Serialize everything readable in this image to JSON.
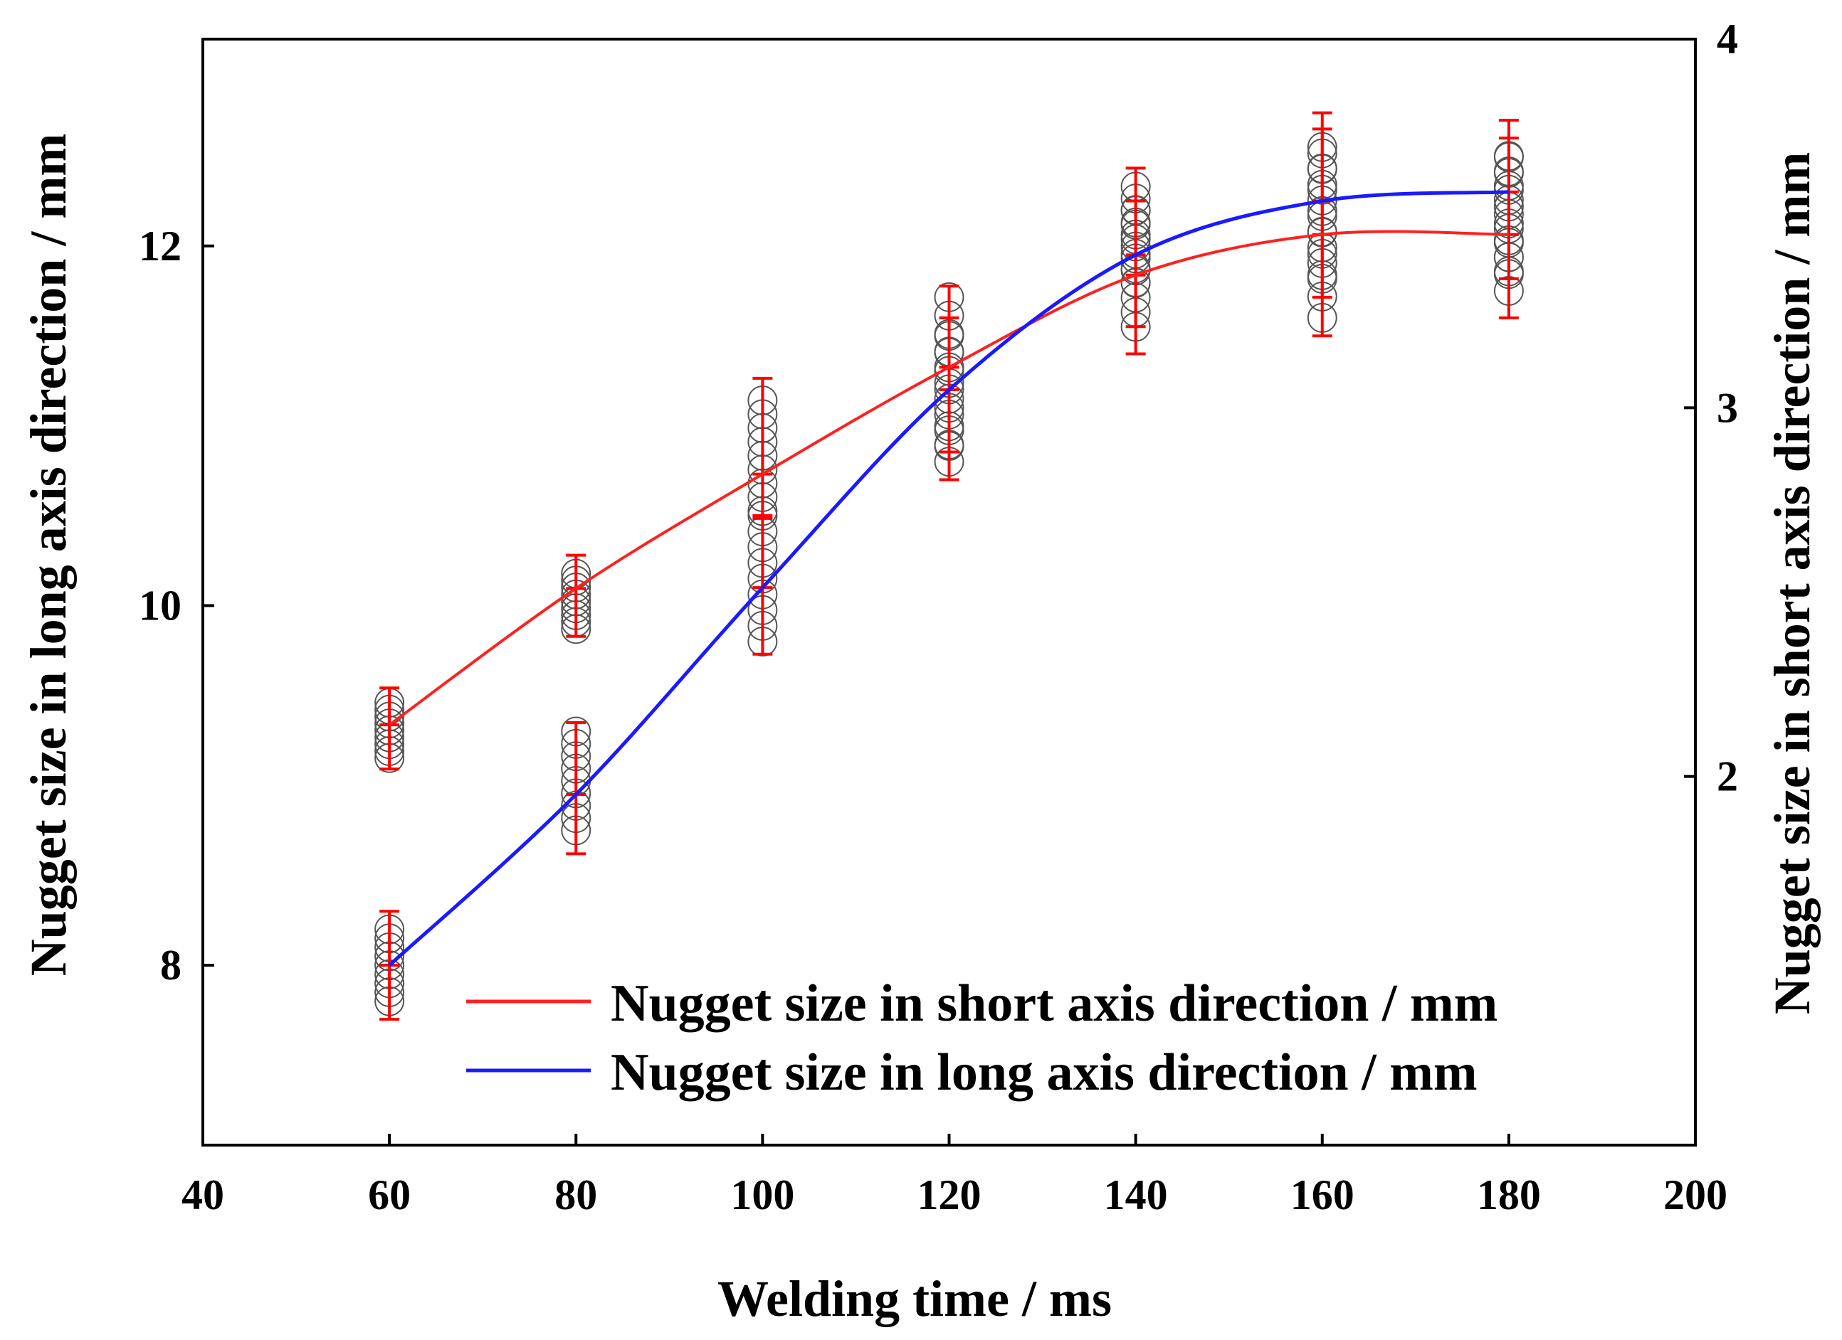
{
  "chart_data": {
    "type": "line",
    "title": "",
    "xlabel": "Welding time / ms",
    "ylabel_left": "Nugget size in long axis direction  / mm",
    "ylabel_right": "Nugget size in short axis direction / mm",
    "xlim": [
      40,
      200
    ],
    "ylim_left": [
      7,
      13.15
    ],
    "ylim_right": [
      1,
      4
    ],
    "x_ticks": [
      "40",
      "60",
      "80",
      "100",
      "120",
      "140",
      "160",
      "180",
      "200"
    ],
    "y_left_ticks": [
      "8",
      "10",
      "12"
    ],
    "y_right_ticks": [
      "2",
      "3",
      "4"
    ],
    "grid": false,
    "legend_position": "bottom-right",
    "x": [
      60,
      80,
      100,
      120,
      140,
      160,
      180
    ],
    "series": [
      {
        "name": "Nugget size in short axis direction / mm",
        "axis": "right",
        "color": "#ff2020",
        "fit_values": [
          2.14,
          2.51,
          2.82,
          3.11,
          3.36,
          3.47,
          3.47
        ],
        "points_min": [
          2.05,
          2.4,
          2.72,
          2.9,
          3.34,
          3.35,
          3.37
        ],
        "points_max": [
          2.2,
          2.55,
          3.02,
          3.3,
          3.6,
          3.69,
          3.68
        ],
        "error_low": [
          2.02,
          2.38,
          2.7,
          2.88,
          3.22,
          3.3,
          3.35
        ],
        "error_high": [
          2.24,
          2.6,
          3.08,
          3.33,
          3.65,
          3.8,
          3.78
        ]
      },
      {
        "name": "Nugget size in long axis direction / mm",
        "axis": "left",
        "color": "#1a1aff",
        "fit_values": [
          8.0,
          8.95,
          10.1,
          11.2,
          11.95,
          12.25,
          12.3
        ],
        "points_min": [
          7.8,
          8.75,
          9.8,
          10.8,
          11.55,
          11.6,
          11.75
        ],
        "points_max": [
          8.2,
          9.3,
          10.5,
          11.5,
          12.2,
          12.55,
          12.5
        ],
        "error_low": [
          7.7,
          8.62,
          9.73,
          10.7,
          11.4,
          11.5,
          11.6
        ],
        "error_high": [
          8.3,
          9.35,
          10.5,
          11.6,
          12.25,
          12.65,
          12.6
        ]
      }
    ]
  }
}
